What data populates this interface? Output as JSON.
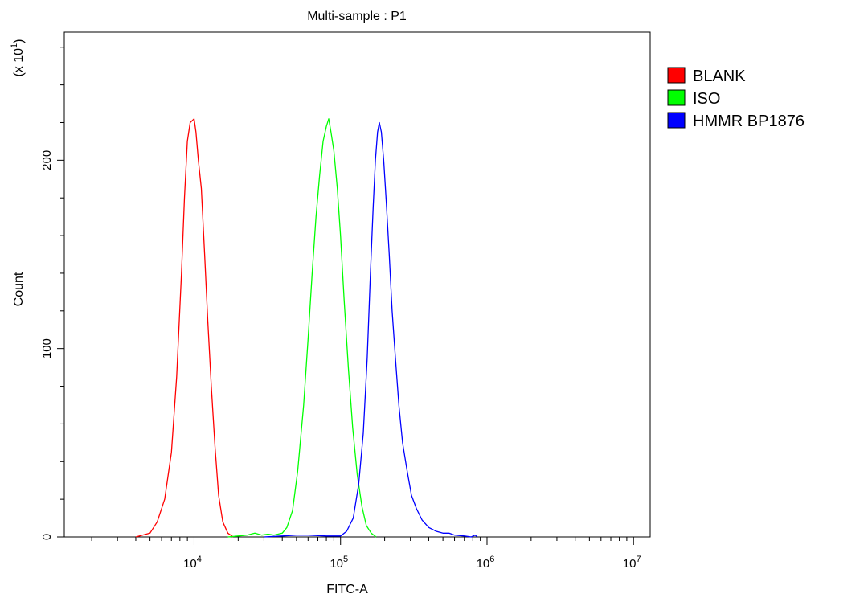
{
  "chart_data": {
    "type": "line",
    "title": "Multi-sample : P1",
    "xlabel": "FITC-A",
    "ylabel": "Count",
    "y_multiplier_label": "(x 10",
    "y_multiplier_exponent": "1",
    "x_scale": "log",
    "xlim": [
      1300,
      13000000
    ],
    "ylim": [
      0,
      268
    ],
    "x_ticks": [
      {
        "base": "10",
        "exp": "4",
        "value": 10000
      },
      {
        "base": "10",
        "exp": "5",
        "value": 100000
      },
      {
        "base": "10",
        "exp": "6",
        "value": 1000000
      },
      {
        "base": "10",
        "exp": "7",
        "value": 10000000
      }
    ],
    "y_ticks": [
      {
        "label": "0",
        "value": 0
      },
      {
        "label": "100",
        "value": 100
      },
      {
        "label": "200",
        "value": 200
      }
    ],
    "legend_position": "right",
    "series": [
      {
        "name": "BLANK",
        "color": "#ff0000",
        "points": [
          [
            4000,
            0
          ],
          [
            5000,
            2
          ],
          [
            5600,
            8
          ],
          [
            6300,
            20
          ],
          [
            7000,
            45
          ],
          [
            7600,
            85
          ],
          [
            8200,
            140
          ],
          [
            8600,
            180
          ],
          [
            9000,
            210
          ],
          [
            9400,
            220
          ],
          [
            10000,
            222
          ],
          [
            10300,
            215
          ],
          [
            10700,
            200
          ],
          [
            11200,
            185
          ],
          [
            11800,
            150
          ],
          [
            12400,
            115
          ],
          [
            13100,
            80
          ],
          [
            13900,
            48
          ],
          [
            14700,
            22
          ],
          [
            15700,
            8
          ],
          [
            17000,
            2
          ],
          [
            18500,
            0
          ]
        ]
      },
      {
        "name": "ISO",
        "color": "#00ff00",
        "points": [
          [
            17000,
            0
          ],
          [
            20000,
            0.5
          ],
          [
            23000,
            1
          ],
          [
            26000,
            2
          ],
          [
            29000,
            1
          ],
          [
            32000,
            1.5
          ],
          [
            35000,
            1
          ],
          [
            40000,
            2
          ],
          [
            43000,
            5
          ],
          [
            47000,
            14
          ],
          [
            51000,
            35
          ],
          [
            56000,
            70
          ],
          [
            60000,
            105
          ],
          [
            64000,
            140
          ],
          [
            68000,
            170
          ],
          [
            72000,
            192
          ],
          [
            76000,
            210
          ],
          [
            80000,
            218
          ],
          [
            83000,
            222
          ],
          [
            86000,
            215
          ],
          [
            90000,
            205
          ],
          [
            95000,
            185
          ],
          [
            100000,
            160
          ],
          [
            106000,
            125
          ],
          [
            113000,
            90
          ],
          [
            121000,
            58
          ],
          [
            130000,
            33
          ],
          [
            140000,
            16
          ],
          [
            150000,
            6
          ],
          [
            162000,
            2
          ],
          [
            175000,
            0
          ]
        ]
      },
      {
        "name": "HMMR BP1876",
        "color": "#0000ff",
        "points": [
          [
            30000,
            0
          ],
          [
            40000,
            0.5
          ],
          [
            50000,
            1
          ],
          [
            60000,
            1
          ],
          [
            80000,
            0.5
          ],
          [
            100000,
            0.5
          ],
          [
            110000,
            3
          ],
          [
            122000,
            10
          ],
          [
            133000,
            28
          ],
          [
            143000,
            55
          ],
          [
            152000,
            95
          ],
          [
            160000,
            140
          ],
          [
            167000,
            175
          ],
          [
            173000,
            200
          ],
          [
            179000,
            215
          ],
          [
            184000,
            220
          ],
          [
            190000,
            215
          ],
          [
            197000,
            200
          ],
          [
            205000,
            178
          ],
          [
            215000,
            150
          ],
          [
            225000,
            120
          ],
          [
            237000,
            95
          ],
          [
            250000,
            70
          ],
          [
            265000,
            50
          ],
          [
            285000,
            35
          ],
          [
            305000,
            22
          ],
          [
            330000,
            15
          ],
          [
            360000,
            9
          ],
          [
            400000,
            5
          ],
          [
            450000,
            3
          ],
          [
            500000,
            2
          ],
          [
            550000,
            2
          ],
          [
            600000,
            1
          ],
          [
            700000,
            0.5
          ],
          [
            780000,
            0
          ],
          [
            830000,
            1
          ],
          [
            860000,
            0
          ]
        ]
      }
    ]
  }
}
